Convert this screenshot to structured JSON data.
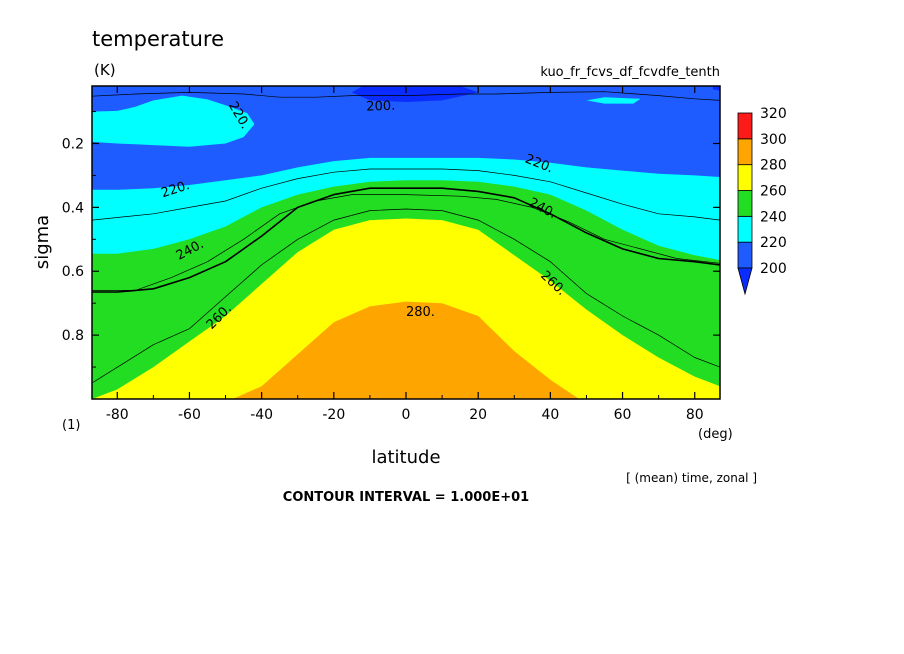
{
  "chart_data": {
    "type": "contour",
    "title": "temperature",
    "units": "(K)",
    "run_label": "kuo_fr_fcvs_df_fcvdfe_tenth",
    "xlabel": "latitude",
    "x_unit": "(deg)",
    "ylabel": "sigma",
    "y_unit": "(1)",
    "xlim": [
      -87,
      87
    ],
    "ylim": [
      1.0,
      0.02
    ],
    "x_ticks": [
      -80,
      -60,
      -40,
      -20,
      0,
      20,
      40,
      60,
      80
    ],
    "x_tick_labels": [
      "-80",
      "-60",
      "-40",
      "-20",
      "0",
      "20",
      "40",
      "60",
      "80"
    ],
    "y_ticks": [
      0.2,
      0.4,
      0.6,
      0.8
    ],
    "y_tick_labels": [
      "0.2",
      "0.4",
      "0.6",
      "0.8"
    ],
    "contour_interval": 10,
    "footer_mean": "[ (mean) time, zonal ]",
    "footer_interval": "CONTOUR INTERVAL = 1.000E+01",
    "colorbar": {
      "levels": [
        "200",
        "220",
        "240",
        "260",
        "280",
        "300",
        "320"
      ],
      "colors": [
        "#1f5cff",
        "#00ffff",
        "#22dd22",
        "#ffff00",
        "#ffa500",
        "#ff1a1a"
      ],
      "below_color": "#0a2cff"
    },
    "fill_colors": {
      "b190": "#0a2cff",
      "b200": "#1f5cff",
      "b220": "#00ffff",
      "b240": "#22dd22",
      "b260": "#ffff00",
      "b280": "#ffa500"
    },
    "fill_regions": [
      {
        "band": "b200",
        "points": [
          [
            -87,
            0.02
          ],
          [
            87,
            0.02
          ],
          [
            87,
            1.0
          ],
          [
            -87,
            1.0
          ]
        ]
      },
      {
        "band": "b220",
        "points": [
          [
            -87,
            1.0
          ],
          [
            -87,
            0.345
          ],
          [
            -80,
            0.345
          ],
          [
            -70,
            0.34
          ],
          [
            -60,
            0.33
          ],
          [
            -50,
            0.315
          ],
          [
            -40,
            0.3
          ],
          [
            -30,
            0.275
          ],
          [
            -20,
            0.255
          ],
          [
            -10,
            0.245
          ],
          [
            0,
            0.245
          ],
          [
            10,
            0.245
          ],
          [
            20,
            0.245
          ],
          [
            30,
            0.25
          ],
          [
            40,
            0.26
          ],
          [
            50,
            0.275
          ],
          [
            60,
            0.285
          ],
          [
            70,
            0.295
          ],
          [
            80,
            0.3
          ],
          [
            87,
            0.305
          ],
          [
            87,
            1.0
          ]
        ]
      },
      {
        "band": "b200",
        "points": [
          [
            -87,
            0.02
          ],
          [
            87,
            0.02
          ],
          [
            87,
            0.045
          ],
          [
            80,
            0.05
          ],
          [
            70,
            0.04
          ],
          [
            60,
            0.035
          ],
          [
            50,
            0.03
          ],
          [
            40,
            0.04
          ],
          [
            30,
            0.04
          ],
          [
            20,
            0.04
          ],
          [
            10,
            0.035
          ],
          [
            0,
            0.04
          ],
          [
            -10,
            0.045
          ],
          [
            -20,
            0.04
          ],
          [
            -30,
            0.035
          ],
          [
            -40,
            0.04
          ],
          [
            -50,
            0.04
          ],
          [
            -60,
            0.04
          ],
          [
            -70,
            0.04
          ],
          [
            -80,
            0.04
          ],
          [
            -87,
            0.04
          ]
        ]
      },
      {
        "band": "b220",
        "points": [
          [
            -87,
            0.1
          ],
          [
            -80,
            0.098
          ],
          [
            -75,
            0.085
          ],
          [
            -70,
            0.065
          ],
          [
            -62,
            0.05
          ],
          [
            -55,
            0.062
          ],
          [
            -50,
            0.08
          ],
          [
            -44,
            0.105
          ],
          [
            -42,
            0.14
          ],
          [
            -45,
            0.18
          ],
          [
            -50,
            0.2
          ],
          [
            -60,
            0.21
          ],
          [
            -70,
            0.205
          ],
          [
            -80,
            0.2
          ],
          [
            -87,
            0.195
          ]
        ]
      },
      {
        "band": "b220",
        "points": [
          [
            50,
            0.065
          ],
          [
            55,
            0.055
          ],
          [
            65,
            0.06
          ],
          [
            63,
            0.075
          ],
          [
            55,
            0.075
          ]
        ]
      },
      {
        "band": "b190",
        "points": [
          [
            -12,
            0.02
          ],
          [
            15,
            0.02
          ],
          [
            20,
            0.04
          ],
          [
            10,
            0.065
          ],
          [
            0,
            0.07
          ],
          [
            -10,
            0.065
          ],
          [
            -15,
            0.04
          ]
        ]
      },
      {
        "band": "b190",
        "points": [
          [
            85,
            0.02
          ],
          [
            87,
            0.02
          ],
          [
            87,
            0.035
          ],
          [
            85,
            0.03
          ]
        ]
      },
      {
        "band": "b240",
        "points": [
          [
            -87,
            1.0
          ],
          [
            -87,
            0.545
          ],
          [
            -80,
            0.545
          ],
          [
            -70,
            0.53
          ],
          [
            -60,
            0.5
          ],
          [
            -50,
            0.46
          ],
          [
            -45,
            0.43
          ],
          [
            -40,
            0.4
          ],
          [
            -30,
            0.36
          ],
          [
            -20,
            0.335
          ],
          [
            -10,
            0.32
          ],
          [
            0,
            0.315
          ],
          [
            10,
            0.315
          ],
          [
            20,
            0.32
          ],
          [
            30,
            0.335
          ],
          [
            40,
            0.36
          ],
          [
            50,
            0.41
          ],
          [
            60,
            0.47
          ],
          [
            70,
            0.52
          ],
          [
            80,
            0.55
          ],
          [
            87,
            0.565
          ],
          [
            87,
            1.0
          ]
        ]
      },
      {
        "band": "b260",
        "points": [
          [
            -87,
            1.0
          ],
          [
            -80,
            0.97
          ],
          [
            -70,
            0.9
          ],
          [
            -60,
            0.82
          ],
          [
            -50,
            0.74
          ],
          [
            -40,
            0.64
          ],
          [
            -30,
            0.54
          ],
          [
            -20,
            0.47
          ],
          [
            -10,
            0.44
          ],
          [
            0,
            0.435
          ],
          [
            10,
            0.44
          ],
          [
            20,
            0.47
          ],
          [
            30,
            0.55
          ],
          [
            40,
            0.63
          ],
          [
            50,
            0.72
          ],
          [
            60,
            0.8
          ],
          [
            70,
            0.87
          ],
          [
            80,
            0.93
          ],
          [
            87,
            0.96
          ],
          [
            87,
            1.0
          ]
        ]
      },
      {
        "band": "b280",
        "points": [
          [
            -48,
            1.0
          ],
          [
            -40,
            0.96
          ],
          [
            -30,
            0.86
          ],
          [
            -20,
            0.76
          ],
          [
            -10,
            0.71
          ],
          [
            0,
            0.695
          ],
          [
            10,
            0.7
          ],
          [
            20,
            0.74
          ],
          [
            30,
            0.85
          ],
          [
            40,
            0.94
          ],
          [
            48,
            1.0
          ]
        ]
      }
    ],
    "contour_lines": [
      {
        "level": 270,
        "weight": "thin",
        "points": [
          [
            -87,
            0.95
          ],
          [
            -70,
            0.83
          ],
          [
            -60,
            0.78
          ],
          [
            -50,
            0.68
          ],
          [
            -40,
            0.58
          ],
          [
            -30,
            0.5
          ],
          [
            -20,
            0.44
          ],
          [
            -10,
            0.41
          ],
          [
            0,
            0.405
          ],
          [
            10,
            0.41
          ],
          [
            20,
            0.44
          ],
          [
            30,
            0.5
          ],
          [
            40,
            0.57
          ],
          [
            50,
            0.67
          ],
          [
            60,
            0.74
          ],
          [
            70,
            0.8
          ],
          [
            80,
            0.87
          ],
          [
            87,
            0.9
          ]
        ]
      },
      {
        "level": 250,
        "weight": "thin",
        "points": [
          [
            -87,
            0.66
          ],
          [
            -75,
            0.66
          ],
          [
            -65,
            0.62
          ],
          [
            -55,
            0.57
          ],
          [
            -45,
            0.5
          ],
          [
            -35,
            0.42
          ],
          [
            -25,
            0.38
          ],
          [
            -15,
            0.36
          ],
          [
            0,
            0.36
          ],
          [
            15,
            0.365
          ],
          [
            25,
            0.375
          ],
          [
            35,
            0.4
          ],
          [
            45,
            0.445
          ],
          [
            55,
            0.5
          ],
          [
            65,
            0.53
          ],
          [
            75,
            0.56
          ],
          [
            87,
            0.575
          ]
        ]
      },
      {
        "level": 230,
        "weight": "thin",
        "points": [
          [
            -87,
            0.44
          ],
          [
            -70,
            0.42
          ],
          [
            -60,
            0.4
          ],
          [
            -50,
            0.38
          ],
          [
            -40,
            0.34
          ],
          [
            -30,
            0.31
          ],
          [
            -20,
            0.29
          ],
          [
            -10,
            0.28
          ],
          [
            0,
            0.28
          ],
          [
            10,
            0.28
          ],
          [
            20,
            0.285
          ],
          [
            30,
            0.3
          ],
          [
            40,
            0.32
          ],
          [
            50,
            0.355
          ],
          [
            60,
            0.39
          ],
          [
            70,
            0.42
          ],
          [
            80,
            0.43
          ],
          [
            87,
            0.44
          ]
        ]
      },
      {
        "level": 210,
        "weight": "thin",
        "points": [
          [
            -87,
            0.052
          ],
          [
            -75,
            0.045
          ],
          [
            -60,
            0.04
          ],
          [
            -45,
            0.045
          ],
          [
            -35,
            0.055
          ],
          [
            -25,
            0.055
          ],
          [
            -15,
            0.05
          ],
          [
            0,
            0.05
          ],
          [
            15,
            0.045
          ],
          [
            25,
            0.045
          ],
          [
            40,
            0.04
          ],
          [
            55,
            0.038
          ],
          [
            70,
            0.05
          ],
          [
            80,
            0.06
          ],
          [
            87,
            0.065
          ]
        ]
      },
      {
        "level": 260,
        "weight": "thick",
        "points": [
          [
            -87,
            0.665
          ],
          [
            -80,
            0.665
          ],
          [
            -70,
            0.655
          ],
          [
            -60,
            0.62
          ],
          [
            -50,
            0.57
          ],
          [
            -45,
            0.53
          ],
          [
            -40,
            0.49
          ],
          [
            -30,
            0.4
          ],
          [
            -20,
            0.36
          ],
          [
            -10,
            0.34
          ],
          [
            0,
            0.34
          ],
          [
            10,
            0.34
          ],
          [
            20,
            0.35
          ],
          [
            30,
            0.37
          ],
          [
            40,
            0.42
          ],
          [
            50,
            0.48
          ],
          [
            60,
            0.53
          ],
          [
            70,
            0.56
          ],
          [
            80,
            0.57
          ],
          [
            87,
            0.58
          ]
        ]
      }
    ],
    "contour_labels": [
      {
        "text": "200.",
        "x": -7,
        "y": 0.08,
        "angle": -2
      },
      {
        "text": "220.",
        "x": -46,
        "y": 0.11,
        "angle": 60
      },
      {
        "text": "220.",
        "x": 37,
        "y": 0.26,
        "angle": 22
      },
      {
        "text": "220.",
        "x": -64,
        "y": 0.34,
        "angle": -18
      },
      {
        "text": "240.",
        "x": 38,
        "y": 0.4,
        "angle": 28
      },
      {
        "text": "240.",
        "x": -60,
        "y": 0.53,
        "angle": -28
      },
      {
        "text": "260.",
        "x": 41,
        "y": 0.635,
        "angle": 43
      },
      {
        "text": "260.",
        "x": -52,
        "y": 0.74,
        "angle": -45
      },
      {
        "text": "280.",
        "x": 4,
        "y": 0.725,
        "angle": 0
      }
    ]
  }
}
